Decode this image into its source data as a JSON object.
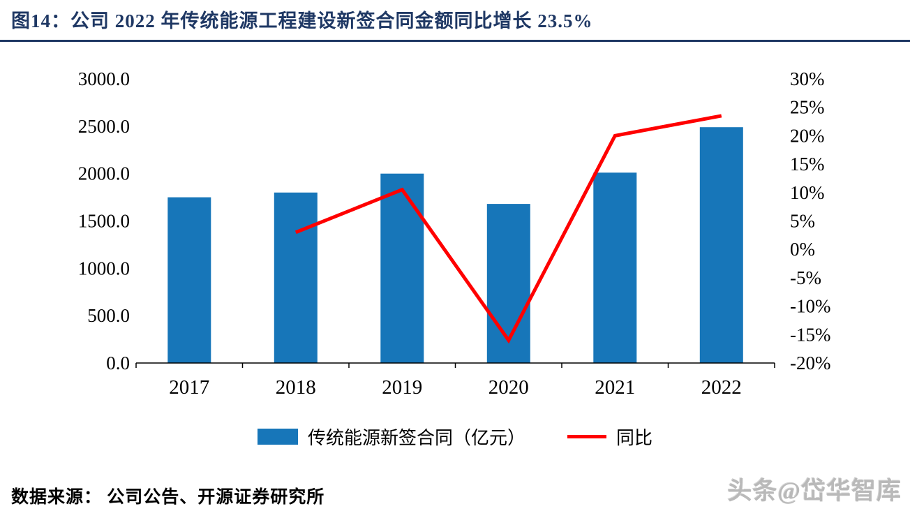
{
  "header": {
    "title": "图14：公司 2022 年传统能源工程建设新签合同金额同比增长 23.5%"
  },
  "chart_data": {
    "type": "combo",
    "categories": [
      "2017",
      "2018",
      "2019",
      "2020",
      "2021",
      "2022"
    ],
    "series": [
      {
        "name": "传统能源新签合同（亿元）",
        "type": "bar",
        "axis": "left",
        "color": "#1776B9",
        "values": [
          1750,
          1800,
          2000,
          1680,
          2010,
          2490
        ]
      },
      {
        "name": "同比",
        "type": "line",
        "axis": "right",
        "color": "#FF0000",
        "values": [
          null,
          3,
          10.5,
          -16,
          20,
          23.5
        ]
      }
    ],
    "left_axis": {
      "min": 0,
      "max": 3000,
      "step": 500,
      "tick_labels": [
        "0.0",
        "500.0",
        "1000.0",
        "1500.0",
        "2000.0",
        "2500.0",
        "3000.0"
      ]
    },
    "right_axis": {
      "min": -20,
      "max": 30,
      "step": 5,
      "tick_labels": [
        "-20%",
        "-15%",
        "-10%",
        "-5%",
        "0%",
        "5%",
        "10%",
        "15%",
        "20%",
        "25%",
        "30%"
      ]
    },
    "grid": "off",
    "legend_position": "bottom",
    "title": "图14：公司 2022 年传统能源工程建设新签合同金额同比增长 23.5%"
  },
  "legend": {
    "bar_label": "传统能源新签合同（亿元）",
    "line_label": "同比"
  },
  "footer": {
    "source": "数据来源： 公司公告、开源证券研究所"
  },
  "watermark": {
    "text": "头条@岱华智库"
  },
  "colors": {
    "title_navy": "#1F3864",
    "bar_blue": "#1776B9",
    "line_red": "#FF0000"
  }
}
